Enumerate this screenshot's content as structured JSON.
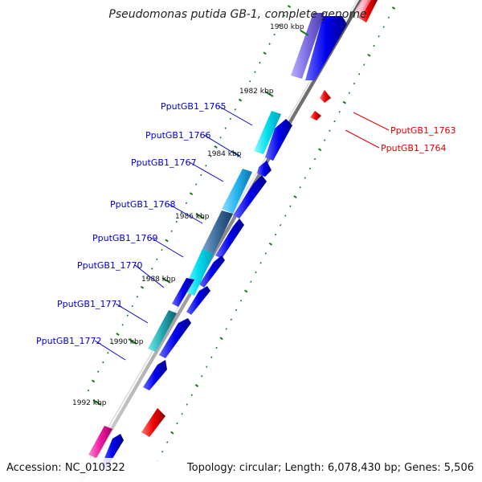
{
  "title": "Pseudomonas putida GB-1, complete genome",
  "footer": {
    "accession": "Accession: NC_010322",
    "topology": "Topology: circular; Length: 6,078,430 bp; Genes: 5,506"
  },
  "colors": {
    "backbone": "#999999",
    "tick": "#1a7a1a",
    "forward_gene": "#0000ee",
    "reverse_gene": "#ee0000",
    "label_blue": "#0000cc",
    "label_red": "#dd0000"
  },
  "scale_ticks": [
    {
      "label": "1980 kbp"
    },
    {
      "label": "1982 kbp"
    },
    {
      "label": "1984 kbp"
    },
    {
      "label": "1986 kbp"
    },
    {
      "label": "1988 kbp"
    },
    {
      "label": "1990 kbp"
    },
    {
      "label": "1992 kbp"
    }
  ],
  "gene_labels": [
    {
      "name": "PputGB1_1763",
      "strand": "reverse"
    },
    {
      "name": "PputGB1_1764",
      "strand": "reverse"
    },
    {
      "name": "PputGB1_1765",
      "strand": "forward"
    },
    {
      "name": "PputGB1_1766",
      "strand": "forward"
    },
    {
      "name": "PputGB1_1767",
      "strand": "forward"
    },
    {
      "name": "PputGB1_1768",
      "strand": "forward"
    },
    {
      "name": "PputGB1_1769",
      "strand": "forward"
    },
    {
      "name": "PputGB1_1770",
      "strand": "forward"
    },
    {
      "name": "PputGB1_1771",
      "strand": "forward"
    },
    {
      "name": "PputGB1_1772",
      "strand": "forward"
    }
  ]
}
